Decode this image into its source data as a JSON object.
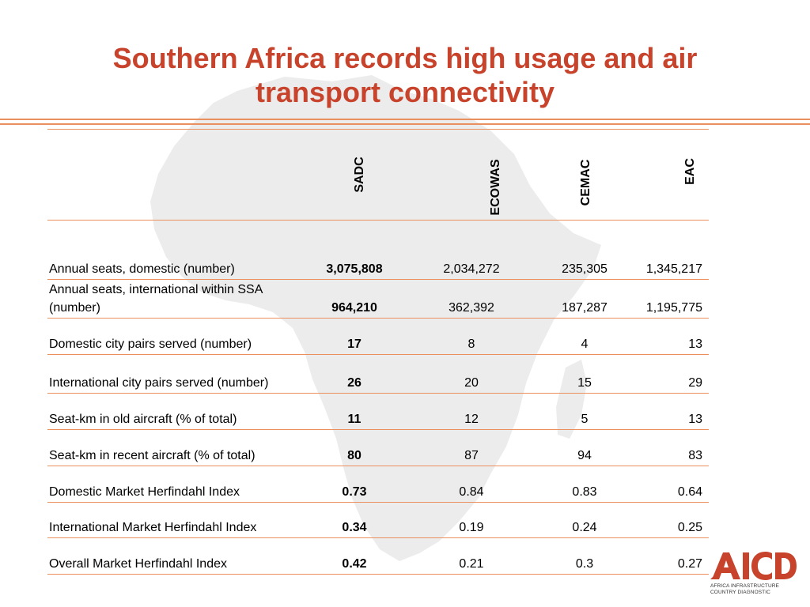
{
  "title": "Southern Africa records high usage and air transport connectivity",
  "columns": [
    "SADC",
    "ECOWAS",
    "CEMAC",
    "EAC"
  ],
  "rows": [
    {
      "label": "Annual seats, domestic (number)",
      "values": [
        "3,075,808",
        "2,034,272",
        "235,305",
        "1,345,217"
      ]
    },
    {
      "label": "Annual seats, international within SSA (number)",
      "values": [
        "964,210",
        "362,392",
        "187,287",
        "1,195,775"
      ]
    },
    {
      "label": "Domestic city pairs served (number)",
      "values": [
        "17",
        "8",
        "4",
        "13"
      ]
    },
    {
      "label": "International city pairs served (number)",
      "values": [
        "26",
        "20",
        "15",
        "29"
      ]
    },
    {
      "label": "Seat-km in old aircraft (% of total)",
      "values": [
        "11",
        "12",
        "5",
        "13"
      ]
    },
    {
      "label": "Seat-km in recent aircraft (% of total)",
      "values": [
        "80",
        "87",
        "94",
        "83"
      ]
    },
    {
      "label": "Domestic Market Herfindahl Index",
      "values": [
        "0.73",
        "0.84",
        "0.83",
        "0.64"
      ]
    },
    {
      "label": "International Market Herfindahl Index",
      "values": [
        "0.34",
        "0.19",
        "0.24",
        "0.25"
      ]
    },
    {
      "label": "Overall Market Herfindahl Index",
      "values": [
        "0.42",
        "0.21",
        "0.3",
        "0.27"
      ]
    }
  ],
  "logo": {
    "mark": "AICD",
    "line1": "AFRICA INFRASTRUCTURE",
    "line2": "COUNTRY DIAGNOSTIC"
  },
  "colors": {
    "title": "#c8432b",
    "rule": "#e9905e",
    "map": "#ececec",
    "logo": "#c8432b"
  },
  "background_image": "africa-continent-silhouette"
}
